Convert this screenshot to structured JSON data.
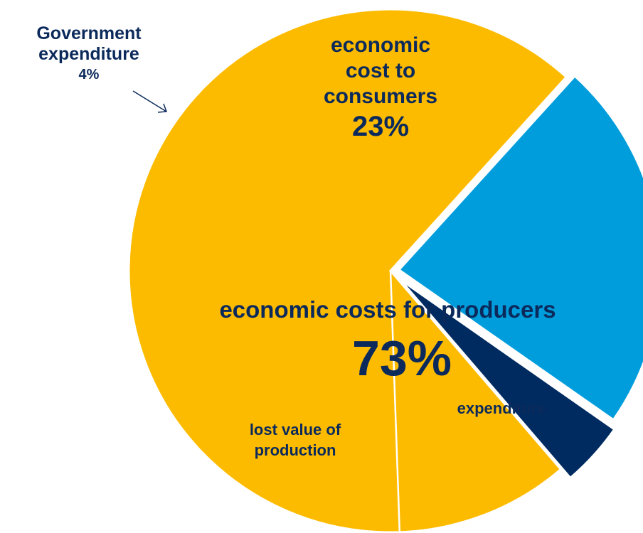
{
  "chart_data": {
    "type": "pie",
    "slices": [
      {
        "label": "economic cost to consumers",
        "value": 23,
        "pct_label": "23%",
        "color": "#009ddc"
      },
      {
        "label": "economic costs for producers",
        "value": 73,
        "pct_label": "73%",
        "color": "#fdbb00",
        "sub_parts": [
          "expenditure",
          "lost value of production"
        ]
      },
      {
        "label": "Government expenditure",
        "value": 4,
        "pct_label": "4%",
        "color": "#002b60"
      }
    ],
    "start_slice_order": [
      "economic cost to consumers",
      "economic costs for producers",
      "Government expenditure"
    ]
  },
  "labels": {
    "government": {
      "line1": "Government",
      "line2": "expenditure",
      "pct": "4%"
    },
    "consumers": {
      "line1": "economic",
      "line2": "cost to",
      "line3": "consumers",
      "pct": "23%"
    },
    "producers": {
      "name": "economic costs for producers",
      "pct": "73%"
    },
    "expenditure": "expenditure",
    "lost_value": {
      "line1": "lost value of",
      "line2": "production"
    }
  },
  "colors": {
    "text": "#0b2a5b",
    "consumers": "#009ddc",
    "producers": "#fdbb00",
    "government": "#002b60"
  }
}
